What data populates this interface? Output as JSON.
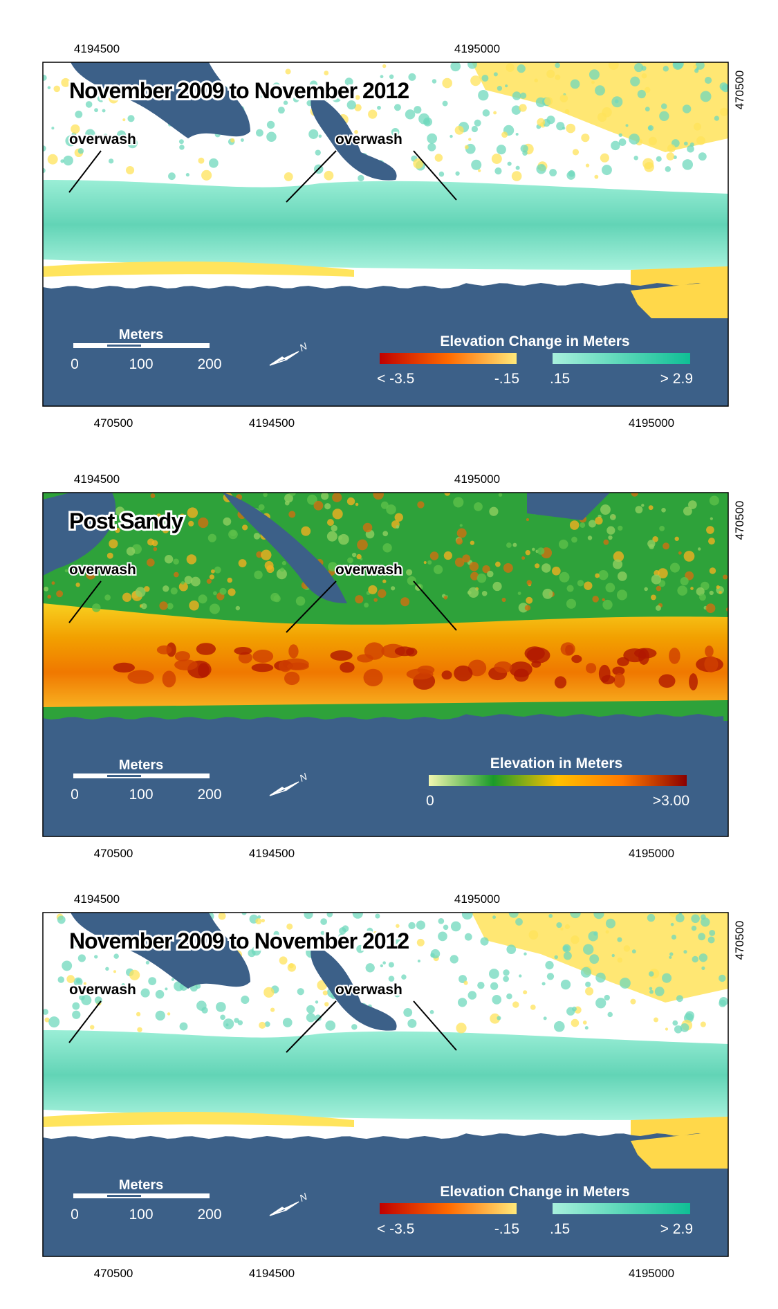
{
  "panels": [
    {
      "title": "November 2009 to November 2012",
      "top_ticks": [
        "4194500",
        "4195000"
      ],
      "right_tick": "470500",
      "bottom_ticks": [
        "470500",
        "4194500",
        "4195000"
      ],
      "annotations": [
        "overwash",
        "overwash"
      ],
      "scale_bar": {
        "title": "Meters",
        "labels": [
          "0",
          "100",
          "200"
        ]
      },
      "legend": {
        "title": "Elevation Change in Meters",
        "labels": [
          "< -3.5",
          "-.15",
          ".15",
          "> 2.9"
        ],
        "bars": [
          [
            "#c00000",
            "#ff6a00",
            "#ffe97a"
          ],
          [
            "#a8f0dc",
            "#0fbf95"
          ]
        ]
      },
      "map": "change"
    },
    {
      "title": "Post Sandy",
      "top_ticks": [
        "4194500",
        "4195000"
      ],
      "right_tick": "470500",
      "bottom_ticks": [
        "470500",
        "4194500",
        "4195000"
      ],
      "annotations": [
        "overwash",
        "overwash"
      ],
      "scale_bar": {
        "title": "Meters",
        "labels": [
          "0",
          "100",
          "200"
        ]
      },
      "legend": {
        "title": "Elevation in Meters",
        "labels": [
          "0",
          ">3.00"
        ],
        "bars": [
          [
            "#f2f7b0",
            "#1a9a2a",
            "#ffc000",
            "#ff7a00",
            "#8a0000"
          ]
        ]
      },
      "map": "elevation"
    },
    {
      "title": "November 2009 to November 2012",
      "top_ticks": [
        "4194500",
        "4195000"
      ],
      "right_tick": "470500",
      "bottom_ticks": [
        "470500",
        "4194500",
        "4195000"
      ],
      "annotations": [
        "overwash",
        "overwash"
      ],
      "scale_bar": {
        "title": "Meters",
        "labels": [
          "0",
          "100",
          "200"
        ]
      },
      "legend": {
        "title": "Elevation Change in Meters",
        "labels": [
          "< -3.5",
          "-.15",
          ".15",
          "> 2.9"
        ],
        "bars": [
          [
            "#c00000",
            "#ff6a00",
            "#ffe97a"
          ],
          [
            "#a8f0dc",
            "#0fbf95"
          ]
        ]
      },
      "map": "change"
    }
  ]
}
